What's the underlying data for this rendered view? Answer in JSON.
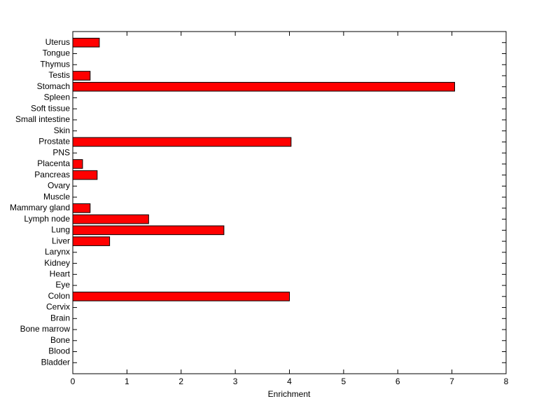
{
  "chart_data": {
    "type": "barh",
    "xlabel": "Enrichment",
    "categories": [
      "Bladder",
      "Blood",
      "Bone",
      "Bone marrow",
      "Brain",
      "Cervix",
      "Colon",
      "Eye",
      "Heart",
      "Kidney",
      "Larynx",
      "Liver",
      "Lung",
      "Lymph node",
      "Mammary gland",
      "Muscle",
      "Ovary",
      "Pancreas",
      "Placenta",
      "PNS",
      "Prostate",
      "Skin",
      "Small intestine",
      "Soft tissue",
      "Spleen",
      "Stomach",
      "Testis",
      "Thymus",
      "Tongue",
      "Uterus"
    ],
    "values": [
      0,
      0,
      0,
      0,
      0,
      0,
      4.0,
      0,
      0,
      0,
      0,
      0.68,
      2.79,
      1.4,
      0.32,
      0,
      0,
      0.45,
      0.18,
      0,
      4.03,
      0,
      0,
      0,
      0,
      7.05,
      0.32,
      0,
      0,
      0.49
    ],
    "color": "#ff0000",
    "xlim": [
      0,
      8
    ],
    "xticks": [
      0,
      1,
      2,
      3,
      4,
      5,
      6,
      7,
      8
    ],
    "grid": false
  }
}
